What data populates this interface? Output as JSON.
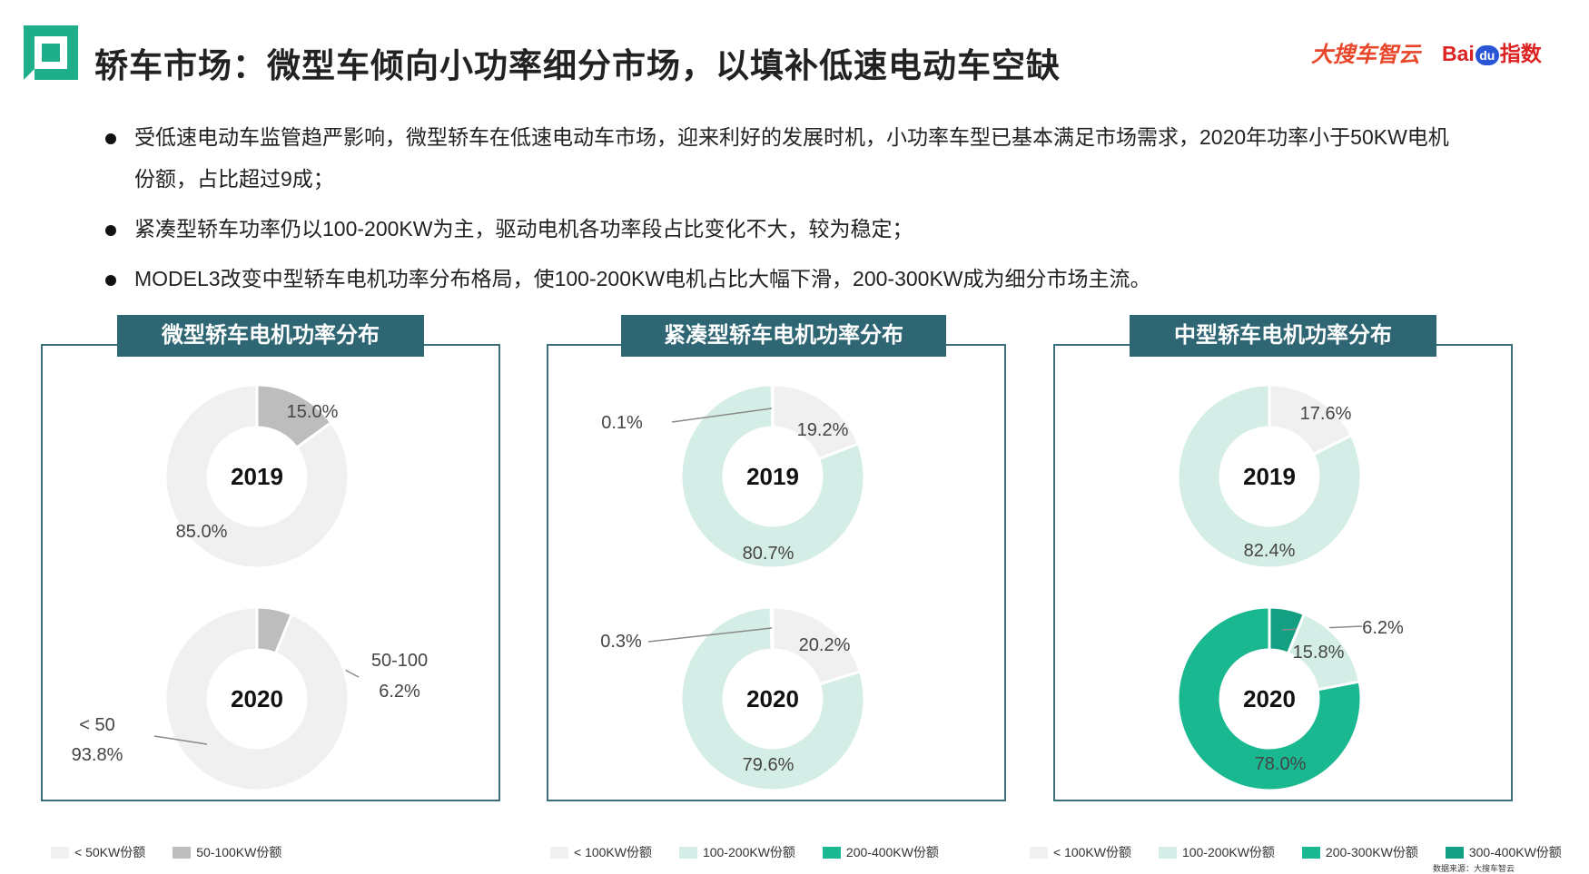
{
  "header": {
    "title": "轿车市场：微型车倾向小功率细分市场，以填补低速电动车空缺",
    "brand_left": "大搜车智云",
    "brand_right_1": "Bai",
    "brand_right_du": "du",
    "brand_right_2": "指数"
  },
  "bullets": [
    "受低速电动车监管趋严影响，微型轿车在低速电动车市场，迎来利好的发展时机，小功率车型已基本满足市场需求，2020年功率小于50KW电机份额，占比超过9成；",
    "紧凑型轿车功率仍以100-200KW为主，驱动电机各功率段占比变化不大，较为稳定；",
    "MODEL3改变中型轿车电机功率分布格局，使100-200KW电机占比大幅下滑，200-300KW成为细分市场主流。"
  ],
  "colors": {
    "panel_border": "#3b6f7c",
    "panel_title_bg": "#2f6673",
    "accent_green": "#1fae8a"
  },
  "chart_data": [
    {
      "type": "pie",
      "title": "微型轿车电机功率分布",
      "legend": [
        {
          "label": "< 50KW份额",
          "color": "#f0f0f0"
        },
        {
          "label": "50-100KW份额",
          "color": "#bdbdbd"
        }
      ],
      "donuts": [
        {
          "center_label": "2019",
          "slices": [
            {
              "label": "15.0%",
              "value": 15.0,
              "color": "#bdbdbd"
            },
            {
              "label": "85.0%",
              "value": 85.0,
              "color": "#f0f0f0"
            }
          ]
        },
        {
          "center_label": "2020",
          "slices": [
            {
              "label": "6.2%",
              "value": 6.2,
              "color": "#bdbdbd",
              "category_name": "50-100"
            },
            {
              "label": "93.8%",
              "value": 93.8,
              "color": "#f0f0f0",
              "category_name": "< 50"
            }
          ]
        }
      ]
    },
    {
      "type": "pie",
      "title": "紧凑型轿车电机功率分布",
      "legend": [
        {
          "label": "< 100KW份额",
          "color": "#f0f0f0"
        },
        {
          "label": "100-200KW份额",
          "color": "#d5ede7"
        },
        {
          "label": "200-400KW份额",
          "color": "#1ab891"
        }
      ],
      "donuts": [
        {
          "center_label": "2019",
          "slices": [
            {
              "label": "19.2%",
              "value": 19.2,
              "color": "#f0f0f0"
            },
            {
              "label": "80.7%",
              "value": 80.7,
              "color": "#d5ede7"
            },
            {
              "label": "0.1%",
              "value": 0.1,
              "color": "#1ab891"
            }
          ]
        },
        {
          "center_label": "2020",
          "slices": [
            {
              "label": "20.2%",
              "value": 20.2,
              "color": "#f0f0f0"
            },
            {
              "label": "79.6%",
              "value": 79.6,
              "color": "#d5ede7"
            },
            {
              "label": "0.3%",
              "value": 0.3,
              "color": "#1ab891"
            }
          ]
        }
      ]
    },
    {
      "type": "pie",
      "title": "中型轿车电机功率分布",
      "legend": [
        {
          "label": "< 100KW份额",
          "color": "#f0f0f0"
        },
        {
          "label": "100-200KW份额",
          "color": "#d5ede7"
        },
        {
          "label": "200-300KW份额",
          "color": "#1ab891"
        },
        {
          "label": "300-400KW份额",
          "color": "#13a082"
        }
      ],
      "donuts": [
        {
          "center_label": "2019",
          "slices": [
            {
              "label": "17.6%",
              "value": 17.6,
              "color": "#f0f0f0"
            },
            {
              "label": "82.4%",
              "value": 82.4,
              "color": "#d5ede7"
            }
          ]
        },
        {
          "center_label": "2020",
          "slices": [
            {
              "label": "6.2%",
              "value": 6.2,
              "color": "#13a082"
            },
            {
              "label": "15.8%",
              "value": 15.8,
              "color": "#d5ede7"
            },
            {
              "label": "78.0%",
              "value": 78.0,
              "color": "#1ab891"
            }
          ]
        }
      ]
    }
  ],
  "source": "数据来源：大搜车智云"
}
